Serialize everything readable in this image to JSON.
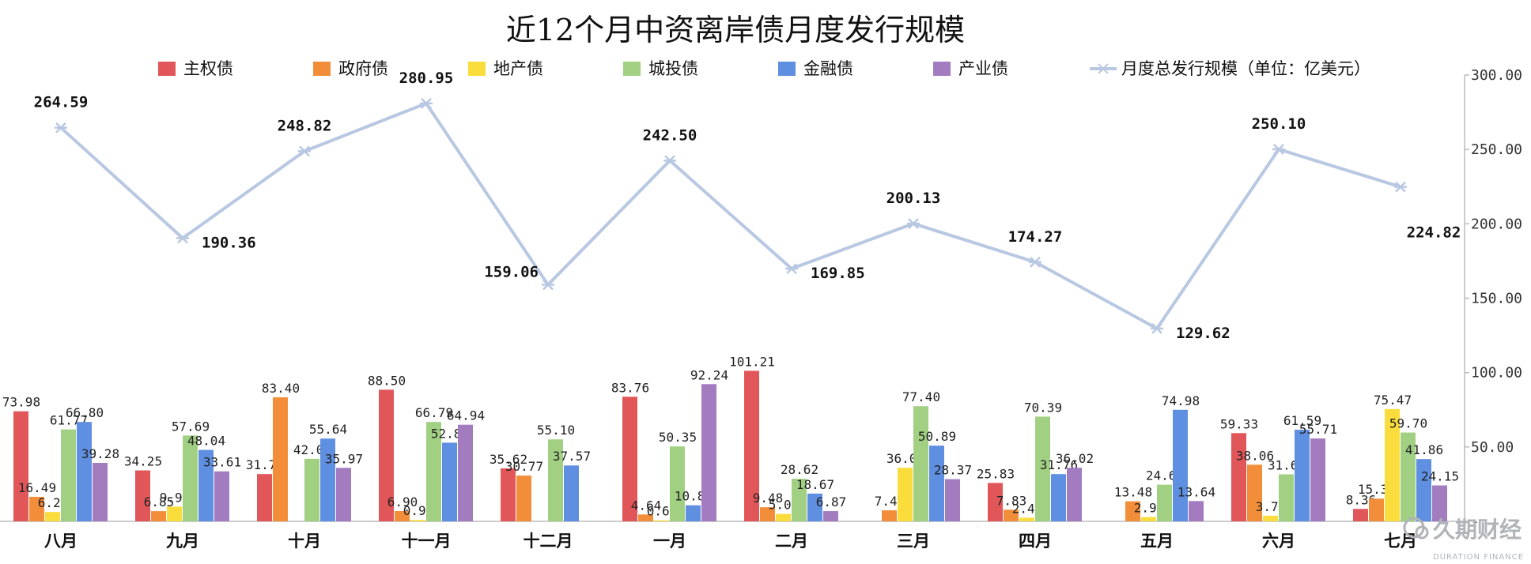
{
  "chart_data": {
    "type": "bar",
    "title": "近12个月中资离岸债月度发行规模",
    "categories": [
      "八月",
      "九月",
      "十月",
      "十一月",
      "十二月",
      "一月",
      "二月",
      "三月",
      "四月",
      "五月",
      "六月",
      "七月"
    ],
    "series": [
      {
        "name": "主权债",
        "color": "#e15759",
        "values": [
          73.98,
          34.25,
          31.78,
          88.5,
          35.62,
          83.76,
          101.21,
          null,
          25.83,
          null,
          59.33,
          8.36
        ]
      },
      {
        "name": "政府债",
        "color": "#f28e3a",
        "values": [
          16.49,
          6.85,
          83.4,
          6.9,
          30.77,
          4.64,
          9.48,
          7.43,
          7.83,
          13.48,
          38.06,
          15.3
        ]
      },
      {
        "name": "地产债",
        "color": "#fadd3c",
        "values": [
          6.27,
          9.92,
          null,
          0.94,
          null,
          0.69,
          5.0,
          36.04,
          2.44,
          2.9,
          3.79,
          75.47
        ]
      },
      {
        "name": "城投债",
        "color": "#a1d083",
        "values": [
          61.77,
          57.69,
          42.03,
          66.79,
          55.1,
          50.35,
          28.62,
          77.4,
          70.39,
          24.62,
          31.62,
          59.7
        ]
      },
      {
        "name": "金融债",
        "color": "#5f8fe0",
        "values": [
          66.8,
          48.04,
          55.64,
          52.88,
          37.57,
          10.82,
          18.67,
          50.89,
          31.76,
          74.98,
          61.59,
          41.86
        ]
      },
      {
        "name": "产业债",
        "color": "#a37cc0",
        "values": [
          39.28,
          33.61,
          35.97,
          64.94,
          null,
          92.24,
          6.87,
          28.37,
          36.02,
          13.64,
          55.71,
          24.15
        ]
      }
    ],
    "line": {
      "name": "月度总发行规模（单位：亿美元）",
      "color": "#b9c8e2",
      "values": [
        264.59,
        190.36,
        248.82,
        280.95,
        159.06,
        242.5,
        169.85,
        200.13,
        174.27,
        129.62,
        250.1,
        224.82
      ],
      "labels": [
        "264.59",
        "190.36",
        "248.82",
        "280.95",
        "159.06",
        "242.50",
        "169.85",
        "200.13",
        "174.27",
        "129.62",
        "250.10",
        "224.82"
      ]
    },
    "bar_labels": [
      [
        "73.98",
        "16.49",
        "6.27",
        "61.77",
        "66.80",
        "39.28"
      ],
      [
        "34.25",
        "6.85",
        "9.92",
        "57.69",
        "48.04",
        "33.61"
      ],
      [
        "31.78",
        "83.40",
        "",
        "42.03",
        "55.64",
        "35.97"
      ],
      [
        "88.50",
        "6.90",
        "0.94",
        "66.79",
        "52.88",
        "64.94"
      ],
      [
        "35.62",
        "30.77",
        "",
        "55.10",
        "37.57",
        ""
      ],
      [
        "83.76",
        "4.64",
        "0.69",
        "50.35",
        "10.82",
        "92.24"
      ],
      [
        "101.21",
        "9.48",
        "5.00",
        "28.62",
        "18.67",
        "6.87"
      ],
      [
        "",
        "7.43",
        "36.04",
        "77.40",
        "50.89",
        "28.37"
      ],
      [
        "25.83",
        "7.83",
        "2.44",
        "70.39",
        "31.76",
        "36.02"
      ],
      [
        "",
        "13.48",
        "2.90",
        "24.62",
        "74.98",
        "13.64"
      ],
      [
        "59.33",
        "38.06",
        "3.79",
        "31.62",
        "61.59",
        "55.71"
      ],
      [
        "8.36",
        "15.30",
        "75.47",
        "59.70",
        "41.86",
        "24.15"
      ]
    ],
    "y_axis": {
      "position": "right",
      "ylim": [
        0,
        300
      ],
      "ticks": [
        "300.00",
        "250.00",
        "200.00",
        "150.00",
        "100.00",
        "50.00",
        "-"
      ]
    },
    "legend_placement": "top",
    "grid": false
  },
  "watermark": {
    "main": "久期财经",
    "sub": "DURATION FINANCE"
  }
}
